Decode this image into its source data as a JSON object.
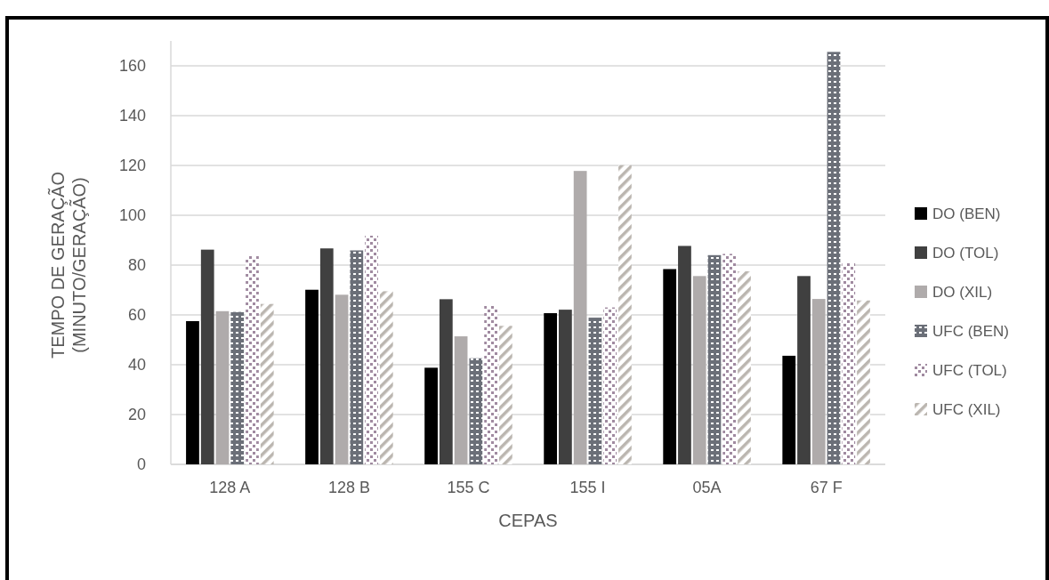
{
  "chart_data": {
    "type": "bar",
    "xlabel": "CEPAS",
    "ylabel": "TEMPO DE GERAÇÃO\n(MINUTO/GERAÇÃO)",
    "categories": [
      "128 A",
      "128 B",
      "155 C",
      "155 I",
      "05A",
      "67 F"
    ],
    "series": [
      {
        "name": "DO (BEN)",
        "color": "#000000",
        "values": [
          57.5,
          70.1,
          38.8,
          60.7,
          78.4,
          43.6
        ]
      },
      {
        "name": "DO (TOL)",
        "color": "#404040",
        "values": [
          86.2,
          86.7,
          66.3,
          62.1,
          87.7,
          75.6
        ]
      },
      {
        "name": "DO (XIL)",
        "color": "#afabab",
        "values": [
          61.5,
          68.1,
          51.4,
          117.8,
          75.6,
          66.4
        ]
      },
      {
        "name": "UFC (BEN)",
        "color": "#6b6f78",
        "values": [
          61.2,
          85.9,
          42.6,
          58.9,
          84.0,
          165.6
        ]
      },
      {
        "name": "UFC (TOL)",
        "color": "#a08aa0",
        "values": [
          83.7,
          91.8,
          63.9,
          63.0,
          84.5,
          80.8
        ]
      },
      {
        "name": "UFC (XIL)",
        "color": "#bbb6b0",
        "values": [
          64.4,
          69.5,
          55.6,
          120.1,
          77.5,
          65.8
        ]
      }
    ],
    "ylim": [
      0,
      170
    ],
    "yticks": [
      0,
      20,
      40,
      60,
      80,
      100,
      120,
      140,
      160
    ],
    "grid": "y",
    "legend": "right"
  }
}
